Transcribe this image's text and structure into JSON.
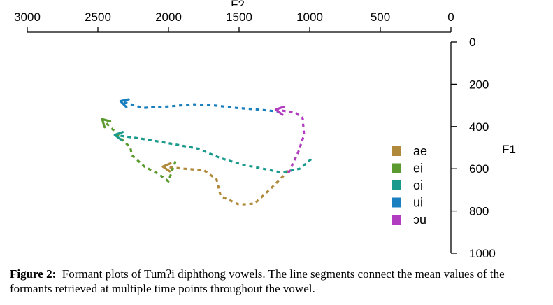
{
  "chart_data": {
    "type": "line",
    "xlabel": "F2",
    "ylabel": "F1",
    "x_reversed": true,
    "y_reversed": true,
    "xlim": [
      3000,
      0
    ],
    "ylim": [
      0,
      1000
    ],
    "x_ticks": [
      3000,
      2500,
      2000,
      1500,
      1000,
      500,
      0
    ],
    "y_ticks": [
      0,
      200,
      400,
      600,
      800,
      1000
    ],
    "x_axis_position": "top",
    "y_axis_position": "right",
    "grid": false,
    "legend_position": "right",
    "series": [
      {
        "name": "ae",
        "color": "#b08a3a",
        "points": [
          [
            1150,
            610
          ],
          [
            1270,
            690
          ],
          [
            1390,
            765
          ],
          [
            1500,
            770
          ],
          [
            1630,
            730
          ],
          [
            1660,
            650
          ],
          [
            1750,
            607
          ],
          [
            1890,
            600
          ],
          [
            2040,
            590
          ]
        ]
      },
      {
        "name": "ei",
        "color": "#5a9a2f",
        "points": [
          [
            1950,
            565
          ],
          [
            1970,
            600
          ],
          [
            2000,
            660
          ],
          [
            2070,
            625
          ],
          [
            2170,
            590
          ],
          [
            2260,
            535
          ],
          [
            2270,
            500
          ],
          [
            2330,
            460
          ],
          [
            2370,
            430
          ],
          [
            2470,
            365
          ]
        ]
      },
      {
        "name": "oi",
        "color": "#1a9a8c",
        "points": [
          [
            990,
            555
          ],
          [
            1070,
            600
          ],
          [
            1200,
            618
          ],
          [
            1330,
            600
          ],
          [
            1480,
            580
          ],
          [
            1630,
            550
          ],
          [
            1790,
            505
          ],
          [
            1990,
            480
          ],
          [
            2170,
            460
          ],
          [
            2380,
            440
          ]
        ]
      },
      {
        "name": "ui",
        "color": "#1a7fbf",
        "points": [
          [
            1210,
            330
          ],
          [
            1360,
            320
          ],
          [
            1520,
            312
          ],
          [
            1680,
            300
          ],
          [
            1830,
            295
          ],
          [
            1990,
            305
          ],
          [
            2180,
            312
          ],
          [
            2340,
            280
          ]
        ]
      },
      {
        "name": "ɔu",
        "color": "#b23cc0",
        "points": [
          [
            1150,
            620
          ],
          [
            1080,
            520
          ],
          [
            1040,
            440
          ],
          [
            1050,
            360
          ],
          [
            1100,
            335
          ],
          [
            1240,
            320
          ]
        ]
      }
    ]
  },
  "caption": {
    "label": "Figure 2:",
    "text": "Formant plots of Tumʔi diphthong vowels. The line segments connect the mean values of the formants retrieved at multiple time points throughout the vowel."
  }
}
